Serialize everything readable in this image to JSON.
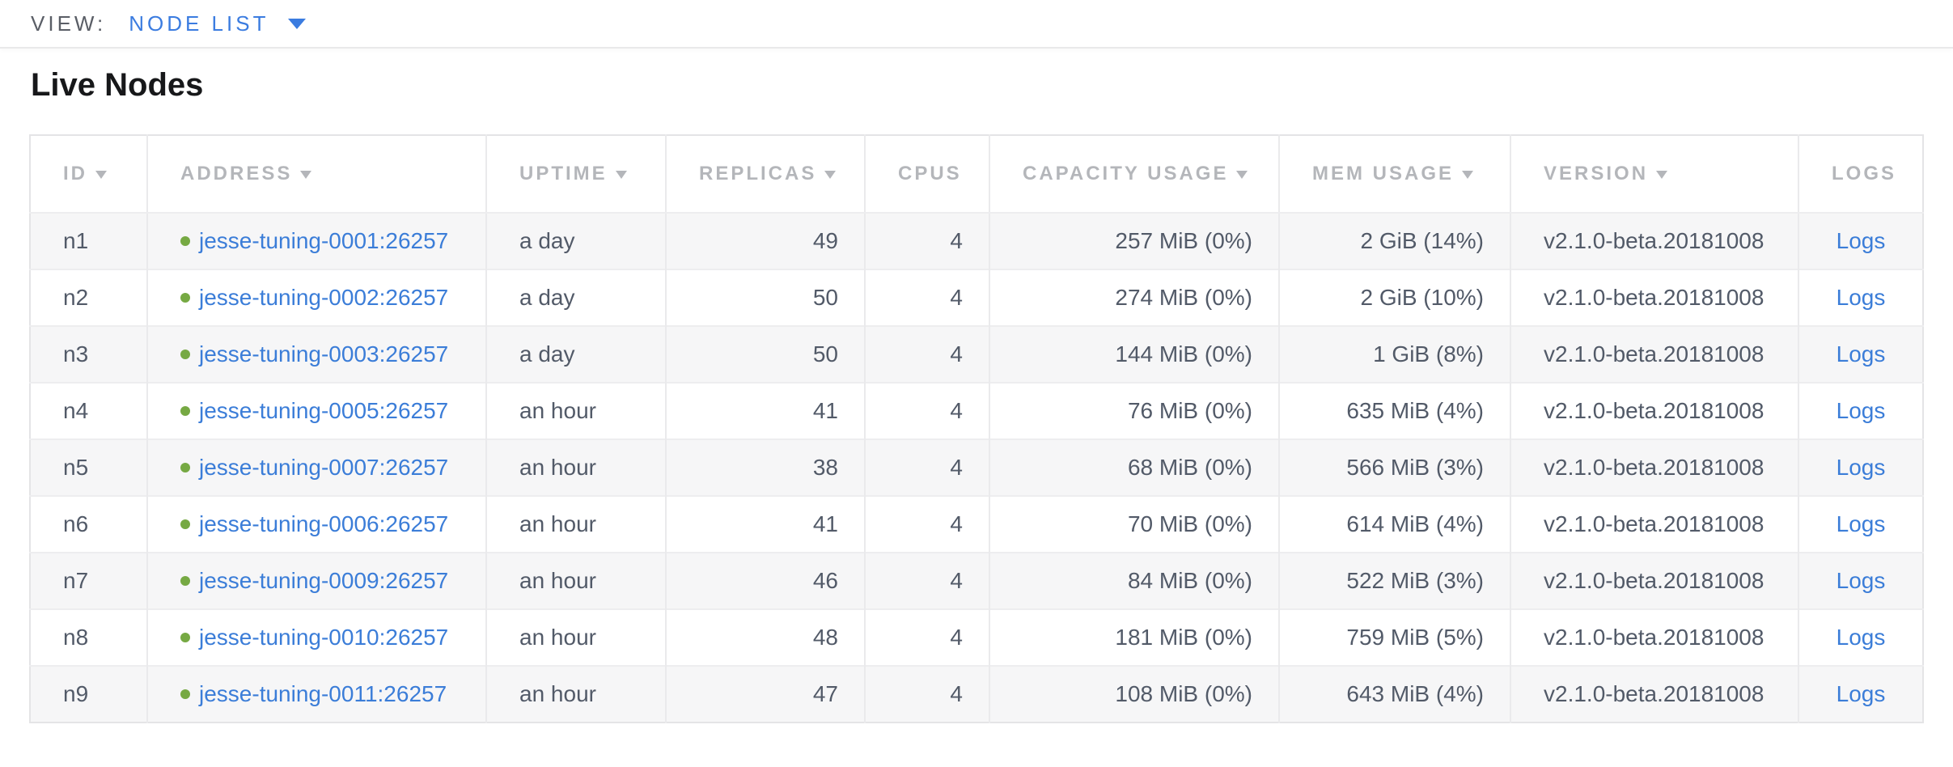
{
  "view_bar": {
    "label": "VIEW:",
    "selected_view": "NODE LIST"
  },
  "page_title": "Live Nodes",
  "table": {
    "columns": [
      {
        "key": "id",
        "label": "ID",
        "sortable": true,
        "align": "left"
      },
      {
        "key": "address",
        "label": "ADDRESS",
        "sortable": true,
        "align": "left"
      },
      {
        "key": "uptime",
        "label": "UPTIME",
        "sortable": true,
        "align": "left"
      },
      {
        "key": "replicas",
        "label": "REPLICAS",
        "sortable": true,
        "align": "right"
      },
      {
        "key": "cpus",
        "label": "CPUS",
        "sortable": false,
        "align": "right"
      },
      {
        "key": "capacity",
        "label": "CAPACITY USAGE",
        "sortable": true,
        "align": "right"
      },
      {
        "key": "mem",
        "label": "MEM USAGE",
        "sortable": true,
        "align": "right"
      },
      {
        "key": "version",
        "label": "VERSION",
        "sortable": true,
        "align": "left"
      },
      {
        "key": "logs",
        "label": "LOGS",
        "sortable": false,
        "align": "center"
      }
    ],
    "rows": [
      {
        "id": "n1",
        "status": "live",
        "address": "jesse-tuning-0001:26257",
        "uptime": "a day",
        "replicas": "49",
        "cpus": "4",
        "capacity": "257 MiB (0%)",
        "mem": "2 GiB (14%)",
        "version": "v2.1.0-beta.20181008",
        "logs": "Logs"
      },
      {
        "id": "n2",
        "status": "live",
        "address": "jesse-tuning-0002:26257",
        "uptime": "a day",
        "replicas": "50",
        "cpus": "4",
        "capacity": "274 MiB (0%)",
        "mem": "2 GiB (10%)",
        "version": "v2.1.0-beta.20181008",
        "logs": "Logs"
      },
      {
        "id": "n3",
        "status": "live",
        "address": "jesse-tuning-0003:26257",
        "uptime": "a day",
        "replicas": "50",
        "cpus": "4",
        "capacity": "144 MiB (0%)",
        "mem": "1 GiB (8%)",
        "version": "v2.1.0-beta.20181008",
        "logs": "Logs"
      },
      {
        "id": "n4",
        "status": "live",
        "address": "jesse-tuning-0005:26257",
        "uptime": "an hour",
        "replicas": "41",
        "cpus": "4",
        "capacity": "76 MiB (0%)",
        "mem": "635 MiB (4%)",
        "version": "v2.1.0-beta.20181008",
        "logs": "Logs"
      },
      {
        "id": "n5",
        "status": "live",
        "address": "jesse-tuning-0007:26257",
        "uptime": "an hour",
        "replicas": "38",
        "cpus": "4",
        "capacity": "68 MiB (0%)",
        "mem": "566 MiB (3%)",
        "version": "v2.1.0-beta.20181008",
        "logs": "Logs"
      },
      {
        "id": "n6",
        "status": "live",
        "address": "jesse-tuning-0006:26257",
        "uptime": "an hour",
        "replicas": "41",
        "cpus": "4",
        "capacity": "70 MiB (0%)",
        "mem": "614 MiB (4%)",
        "version": "v2.1.0-beta.20181008",
        "logs": "Logs"
      },
      {
        "id": "n7",
        "status": "live",
        "address": "jesse-tuning-0009:26257",
        "uptime": "an hour",
        "replicas": "46",
        "cpus": "4",
        "capacity": "84 MiB (0%)",
        "mem": "522 MiB (3%)",
        "version": "v2.1.0-beta.20181008",
        "logs": "Logs"
      },
      {
        "id": "n8",
        "status": "live",
        "address": "jesse-tuning-0010:26257",
        "uptime": "an hour",
        "replicas": "48",
        "cpus": "4",
        "capacity": "181 MiB (0%)",
        "mem": "759 MiB (5%)",
        "version": "v2.1.0-beta.20181008",
        "logs": "Logs"
      },
      {
        "id": "n9",
        "status": "live",
        "address": "jesse-tuning-0011:26257",
        "uptime": "an hour",
        "replicas": "47",
        "cpus": "4",
        "capacity": "108 MiB (0%)",
        "mem": "643 MiB (4%)",
        "version": "v2.1.0-beta.20181008",
        "logs": "Logs"
      }
    ]
  },
  "colors": {
    "link_blue": "#3b7dd8",
    "view_selector_blue": "#3b7ce0",
    "live_status_green": "#76a943",
    "header_text_gray": "#b4b6ba",
    "cell_text": "#525a68",
    "striped_row_bg": "#f6f6f7"
  }
}
